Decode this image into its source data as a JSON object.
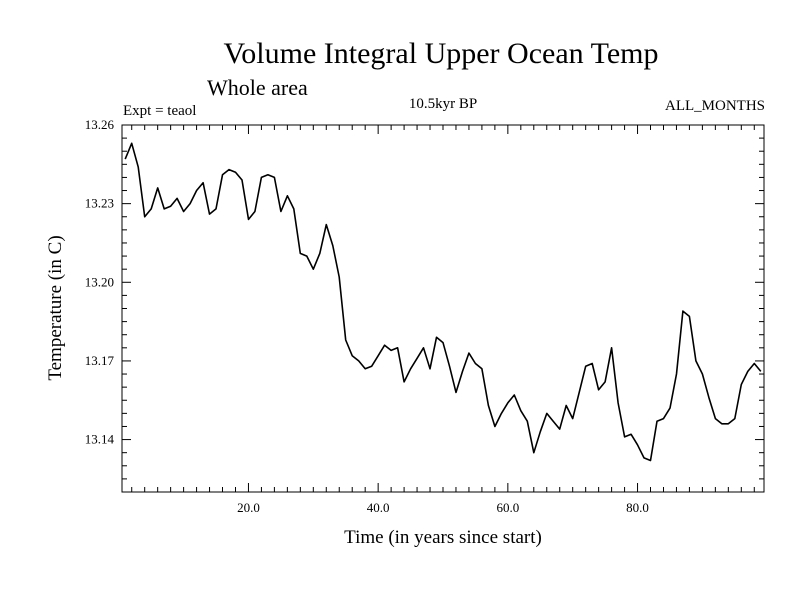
{
  "chart_data": {
    "type": "line",
    "title": "Volume Integral Upper Ocean Temp",
    "subtitle": "Whole area",
    "annotations": {
      "experiment": "Expt = teaol",
      "period": "10.5kyr BP",
      "months": "ALL_MONTHS"
    },
    "xlabel": "Time (in years since start)",
    "ylabel": "Temperature (in C)",
    "xlim": [
      0.5,
      99.5
    ],
    "ylim": [
      13.12,
      13.26
    ],
    "xticks": [
      20,
      40,
      60,
      80
    ],
    "xtick_labels": [
      "20.0",
      "40.0",
      "60.0",
      "80.0"
    ],
    "yticks": [
      13.14,
      13.17,
      13.2,
      13.23,
      13.26
    ],
    "ytick_labels": [
      "13.14",
      "13.17",
      "13.20",
      "13.23",
      "13.26"
    ],
    "grid": false,
    "series": [
      {
        "name": "Volume Integral Upper Ocean Temp",
        "x": [
          1,
          2,
          3,
          4,
          5,
          6,
          7,
          8,
          9,
          10,
          11,
          12,
          13,
          14,
          15,
          16,
          17,
          18,
          19,
          20,
          21,
          22,
          23,
          24,
          25,
          26,
          27,
          28,
          29,
          30,
          31,
          32,
          33,
          34,
          35,
          36,
          37,
          38,
          39,
          40,
          41,
          42,
          43,
          44,
          45,
          46,
          47,
          48,
          49,
          50,
          51,
          52,
          53,
          54,
          55,
          56,
          57,
          58,
          59,
          60,
          61,
          62,
          63,
          64,
          65,
          66,
          67,
          68,
          69,
          70,
          71,
          72,
          73,
          74,
          75,
          76,
          77,
          78,
          79,
          80,
          81,
          82,
          83,
          84,
          85,
          86,
          87,
          88,
          89,
          90,
          91,
          92,
          93,
          94,
          95,
          96,
          97,
          98,
          99
        ],
        "values": [
          13.247,
          13.253,
          13.244,
          13.225,
          13.228,
          13.236,
          13.228,
          13.229,
          13.232,
          13.227,
          13.23,
          13.235,
          13.238,
          13.226,
          13.228,
          13.241,
          13.243,
          13.242,
          13.239,
          13.224,
          13.227,
          13.24,
          13.241,
          13.24,
          13.227,
          13.233,
          13.228,
          13.211,
          13.21,
          13.205,
          13.211,
          13.222,
          13.214,
          13.202,
          13.178,
          13.172,
          13.17,
          13.167,
          13.168,
          13.172,
          13.176,
          13.174,
          13.175,
          13.162,
          13.167,
          13.171,
          13.175,
          13.167,
          13.179,
          13.177,
          13.168,
          13.158,
          13.166,
          13.173,
          13.169,
          13.167,
          13.153,
          13.145,
          13.15,
          13.154,
          13.157,
          13.151,
          13.147,
          13.135,
          13.143,
          13.15,
          13.147,
          13.144,
          13.153,
          13.148,
          13.158,
          13.168,
          13.169,
          13.159,
          13.162,
          13.175,
          13.154,
          13.141,
          13.142,
          13.138,
          13.133,
          13.132,
          13.147,
          13.148,
          13.152,
          13.165,
          13.189,
          13.187,
          13.17,
          13.165,
          13.156,
          13.148,
          13.146,
          13.146,
          13.148,
          13.161,
          13.166,
          13.169,
          13.166
        ]
      }
    ]
  }
}
